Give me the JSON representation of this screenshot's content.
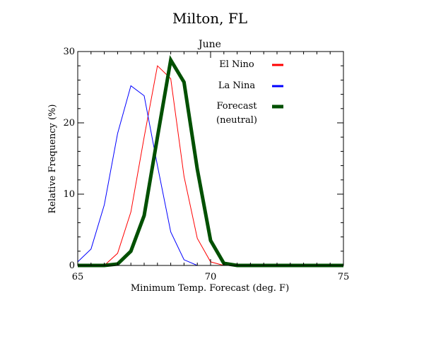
{
  "chart_data": {
    "type": "line",
    "title": "Milton, FL",
    "subtitle": "June",
    "xlabel": "Minimum Temp. Forecast (deg. F)",
    "ylabel": "Relative Frequency (%)",
    "xlim": [
      65,
      75
    ],
    "ylim": [
      0,
      30
    ],
    "x_ticks": [
      65,
      70,
      75
    ],
    "y_ticks": [
      0,
      10,
      20,
      30
    ],
    "legend_placement": "top-right",
    "series": [
      {
        "name": "El Nino",
        "color": "#ff0000",
        "stroke": "thin",
        "x": [
          65.0,
          65.5,
          66.0,
          66.5,
          67.0,
          67.5,
          68.0,
          68.5,
          69.0,
          69.5,
          70.0,
          70.5,
          71.0,
          71.5,
          72.0,
          72.5,
          73.0,
          73.5,
          74.0,
          74.5,
          75.0
        ],
        "values": [
          0.0,
          0.0,
          0.0,
          1.7,
          7.5,
          18.0,
          28.0,
          26.2,
          12.5,
          3.8,
          0.5,
          0.0,
          0.0,
          0.0,
          0.0,
          0.0,
          0.0,
          0.0,
          0.0,
          0.0,
          0.0
        ]
      },
      {
        "name": "La Nina",
        "color": "#0000ff",
        "stroke": "thin",
        "x": [
          65.0,
          65.5,
          66.0,
          66.5,
          67.0,
          67.5,
          68.0,
          68.5,
          69.0,
          69.5,
          70.0,
          70.5,
          71.0,
          71.5,
          72.0,
          72.5,
          73.0,
          73.5,
          74.0,
          74.5,
          75.0
        ],
        "values": [
          0.5,
          2.3,
          8.5,
          18.5,
          25.2,
          23.8,
          14.0,
          4.7,
          0.8,
          0.0,
          0.0,
          0.0,
          0.0,
          0.0,
          0.0,
          0.0,
          0.0,
          0.0,
          0.0,
          0.0,
          0.0
        ]
      },
      {
        "name": "Forecast",
        "label_line2": "(neutral)",
        "color": "#005000",
        "stroke": "thick",
        "x": [
          65.0,
          65.5,
          66.0,
          66.5,
          67.0,
          67.5,
          68.0,
          68.5,
          69.0,
          69.5,
          70.0,
          70.5,
          71.0,
          71.5,
          72.0,
          72.5,
          73.0,
          73.5,
          74.0,
          74.5,
          75.0
        ],
        "values": [
          0.0,
          0.0,
          0.0,
          0.2,
          2.0,
          7.0,
          18.0,
          28.8,
          25.7,
          13.5,
          3.5,
          0.3,
          0.0,
          0.0,
          0.0,
          0.0,
          0.0,
          0.0,
          0.0,
          0.0,
          0.0
        ]
      }
    ]
  }
}
